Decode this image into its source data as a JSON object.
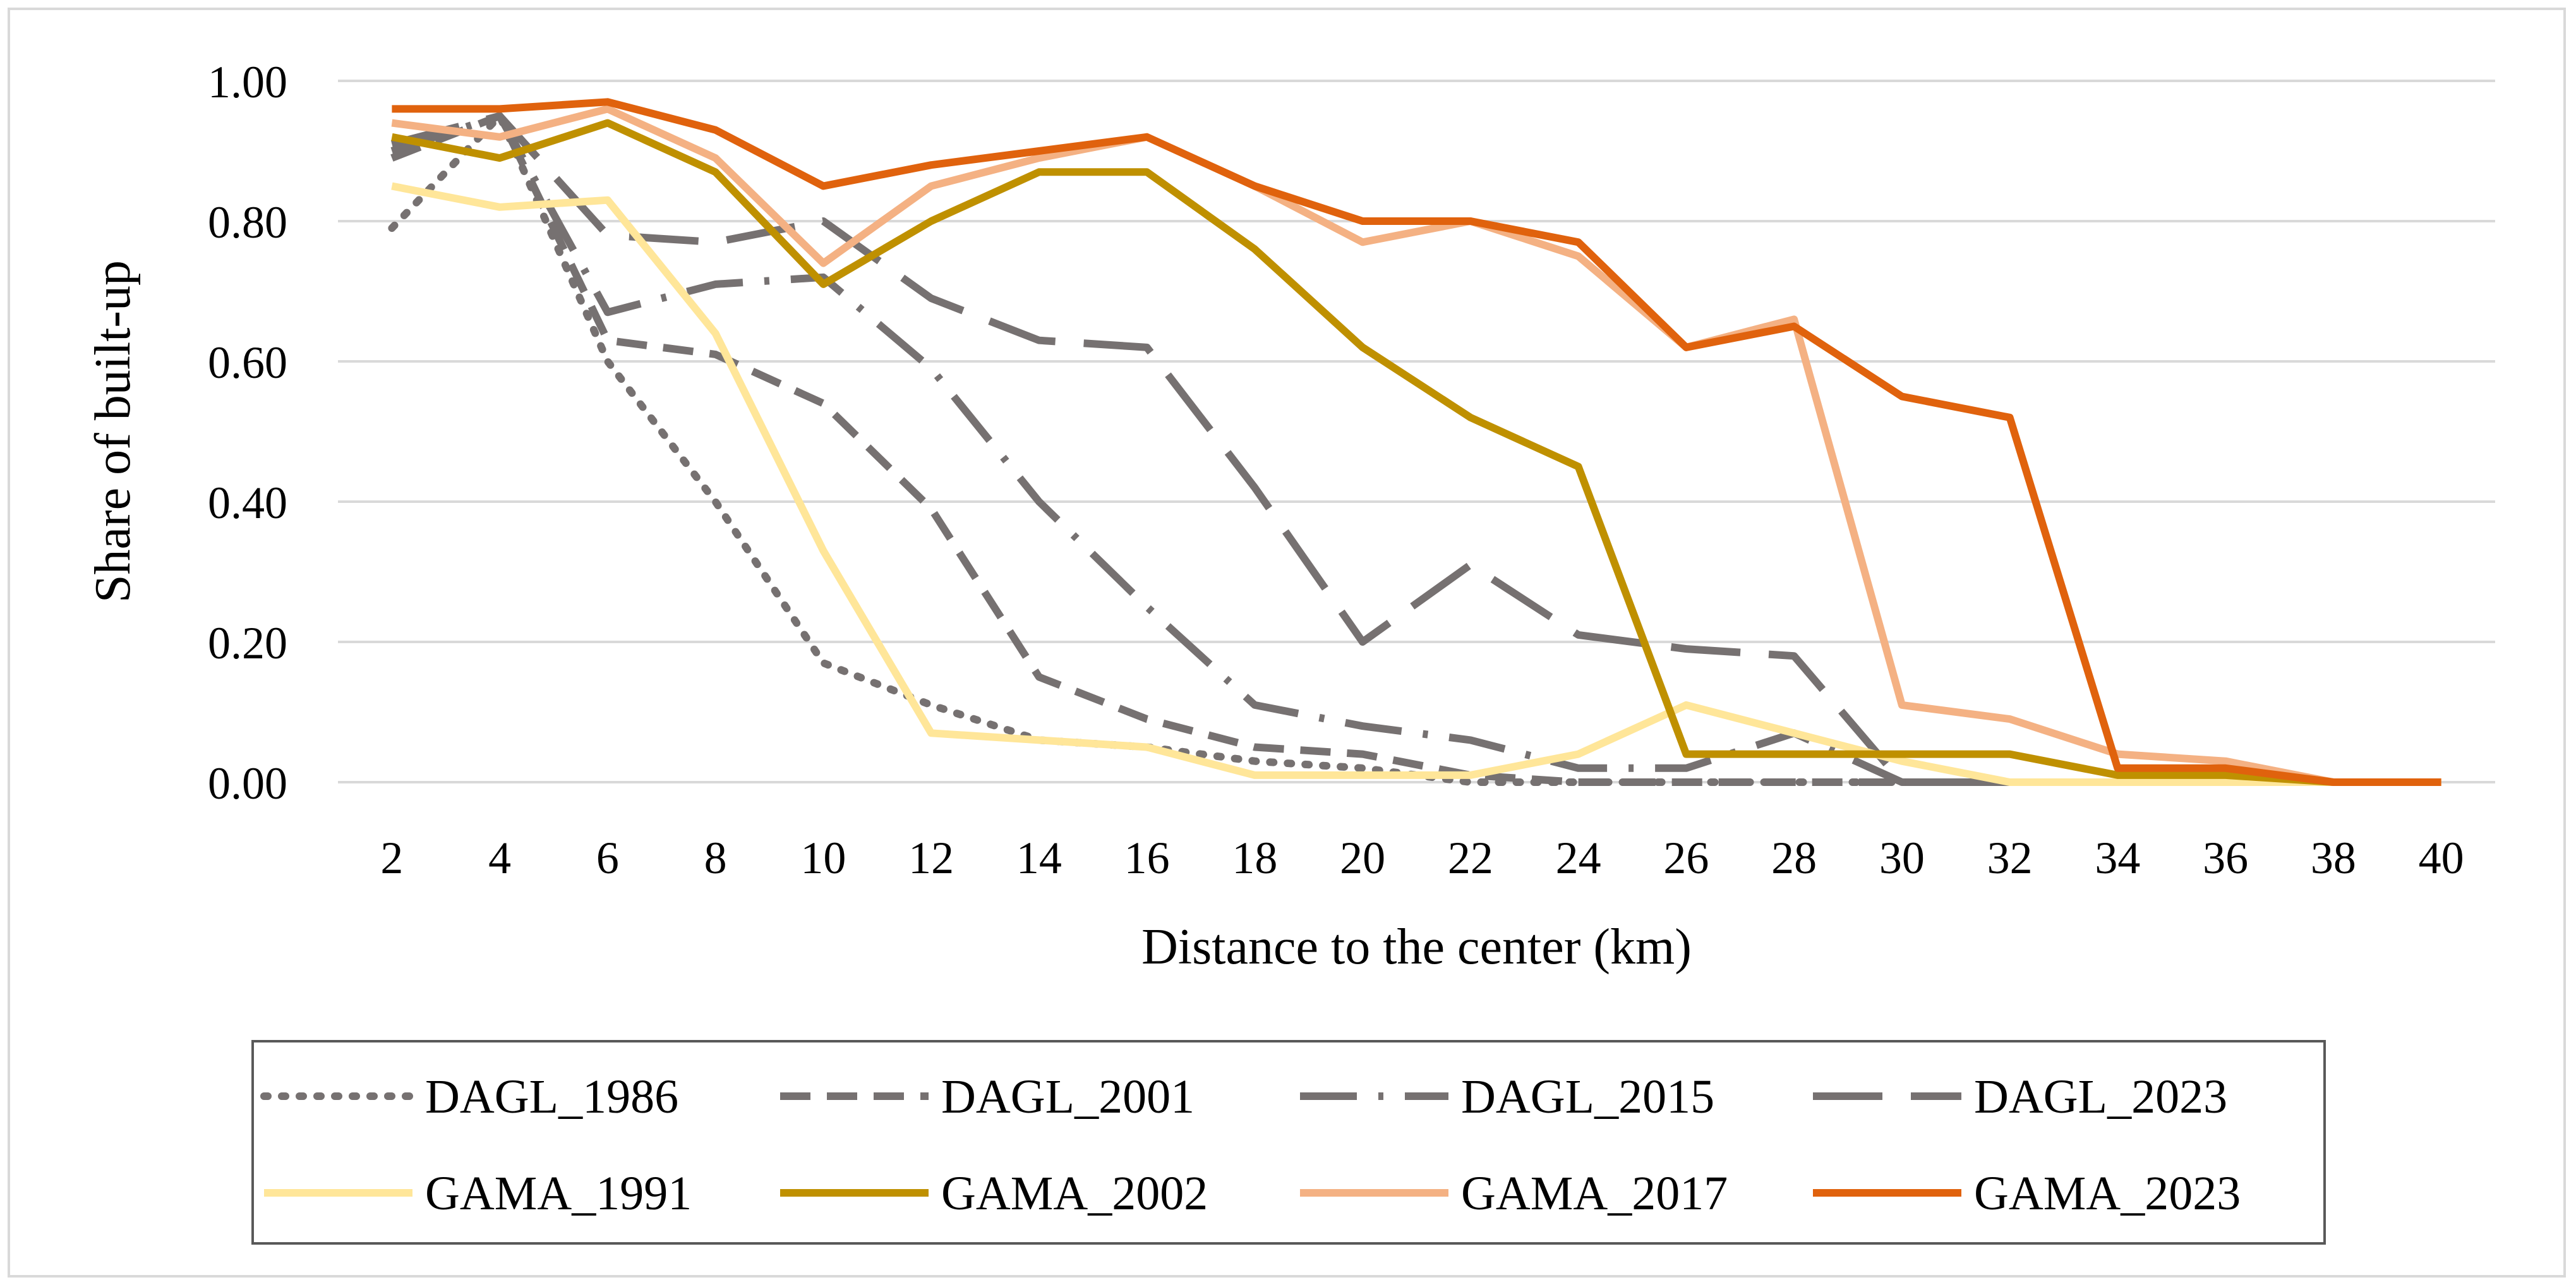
{
  "chart_data": {
    "type": "line",
    "title": "",
    "xlabel": "Distance to the center (km)",
    "ylabel": "Share of built-up",
    "x": [
      2,
      4,
      6,
      8,
      10,
      12,
      14,
      16,
      18,
      20,
      22,
      24,
      26,
      28,
      30,
      32,
      34,
      36,
      38,
      40
    ],
    "ylim": [
      0,
      1
    ],
    "yticks": [
      "0.00",
      "0.20",
      "0.40",
      "0.60",
      "0.80",
      "1.00"
    ],
    "grid": "horizontal",
    "legend_position": "bottom",
    "series": [
      {
        "name": "DAGL_1986",
        "color": "#767171",
        "style": "dotted",
        "values": [
          0.79,
          0.95,
          0.6,
          0.4,
          0.17,
          0.11,
          0.06,
          0.05,
          0.03,
          0.02,
          0.0,
          0.0,
          0.0,
          0.0,
          0.0,
          0.0,
          null,
          null,
          null,
          null
        ]
      },
      {
        "name": "DAGL_2001",
        "color": "#767171",
        "style": "dashed",
        "values": [
          0.89,
          0.95,
          0.63,
          0.61,
          0.54,
          0.39,
          0.15,
          0.09,
          0.05,
          0.04,
          0.01,
          0.0,
          0.0,
          0.0,
          0.0,
          0.0,
          null,
          null,
          null,
          null
        ]
      },
      {
        "name": "DAGL_2015",
        "color": "#767171",
        "style": "dashdot",
        "values": [
          0.9,
          0.95,
          0.67,
          0.71,
          0.72,
          0.59,
          0.4,
          0.25,
          0.11,
          0.08,
          0.06,
          0.02,
          0.02,
          0.07,
          0.0,
          0.0,
          null,
          null,
          null,
          null
        ]
      },
      {
        "name": "DAGL_2023",
        "color": "#767171",
        "style": "longdash",
        "values": [
          0.91,
          0.95,
          0.78,
          0.77,
          0.8,
          0.69,
          0.63,
          0.62,
          0.42,
          0.2,
          0.31,
          0.21,
          0.19,
          0.18,
          0.0,
          0.0,
          null,
          null,
          null,
          null
        ]
      },
      {
        "name": "GAMA_1991",
        "color": "#ffe699",
        "style": "solid",
        "values": [
          0.85,
          0.82,
          0.83,
          0.64,
          0.33,
          0.07,
          0.06,
          0.05,
          0.01,
          0.01,
          0.01,
          0.04,
          0.11,
          0.07,
          0.03,
          0.0,
          0.0,
          0.0,
          0.0,
          0.0
        ]
      },
      {
        "name": "GAMA_2002",
        "color": "#bf9000",
        "style": "solid",
        "values": [
          0.92,
          0.89,
          0.94,
          0.87,
          0.71,
          0.8,
          0.87,
          0.87,
          0.76,
          0.62,
          0.52,
          0.45,
          0.04,
          0.04,
          0.04,
          0.04,
          0.01,
          0.01,
          0.0,
          0.0
        ]
      },
      {
        "name": "GAMA_2017",
        "color": "#f4b183",
        "style": "solid",
        "values": [
          0.94,
          0.92,
          0.96,
          0.89,
          0.74,
          0.85,
          0.89,
          0.92,
          0.85,
          0.77,
          0.8,
          0.75,
          0.62,
          0.66,
          0.11,
          0.09,
          0.04,
          0.03,
          0.0,
          0.0
        ]
      },
      {
        "name": "GAMA_2023",
        "color": "#e0620d",
        "style": "solid",
        "values": [
          0.96,
          0.96,
          0.97,
          0.93,
          0.85,
          0.88,
          0.9,
          0.92,
          0.85,
          0.8,
          0.8,
          0.77,
          0.62,
          0.65,
          0.55,
          0.52,
          0.02,
          0.02,
          0.0,
          0.0
        ]
      }
    ]
  }
}
